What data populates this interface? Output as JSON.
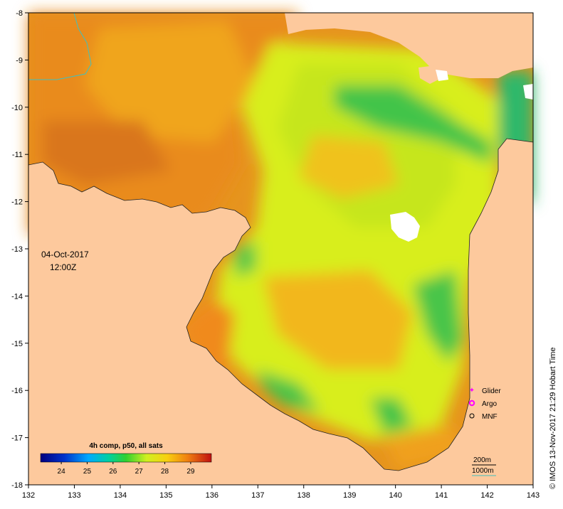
{
  "map": {
    "date": "04-Oct-2017",
    "time": "12:00Z",
    "colorbar": {
      "title": "4h comp, p50, all sats",
      "ticks": [
        "24",
        "25",
        "26",
        "27",
        "28",
        "29"
      ],
      "range": [
        23.2,
        29.8
      ]
    },
    "x_axis": {
      "ticks": [
        "132",
        "133",
        "134",
        "135",
        "136",
        "137",
        "138",
        "139",
        "140",
        "141",
        "142",
        "143"
      ],
      "range": [
        132,
        143
      ]
    },
    "y_axis": {
      "ticks": [
        "-8",
        "-9",
        "-10",
        "-11",
        "-12",
        "-13",
        "-14",
        "-15",
        "-16",
        "-17",
        "-18"
      ],
      "range": [
        -8,
        -18
      ]
    },
    "legend": {
      "items": [
        {
          "label": "Glider",
          "color": "#ff00ff"
        },
        {
          "label": "Argo",
          "color": "#ff00ff"
        },
        {
          "label": "MNF",
          "color": "#000000"
        }
      ]
    },
    "depth_contours": [
      {
        "label": "200m",
        "color": "#000000"
      },
      {
        "label": "1000m",
        "color": "#40c0c0"
      }
    ],
    "credit": "© IMOS 13-Nov-2017 21:29 Hobart Time",
    "colors": {
      "land": "#fdc99d",
      "warm": "#e8891a",
      "mid": "#f0b81a",
      "cool": "#d9f01a",
      "cold": "#33c24a"
    }
  }
}
